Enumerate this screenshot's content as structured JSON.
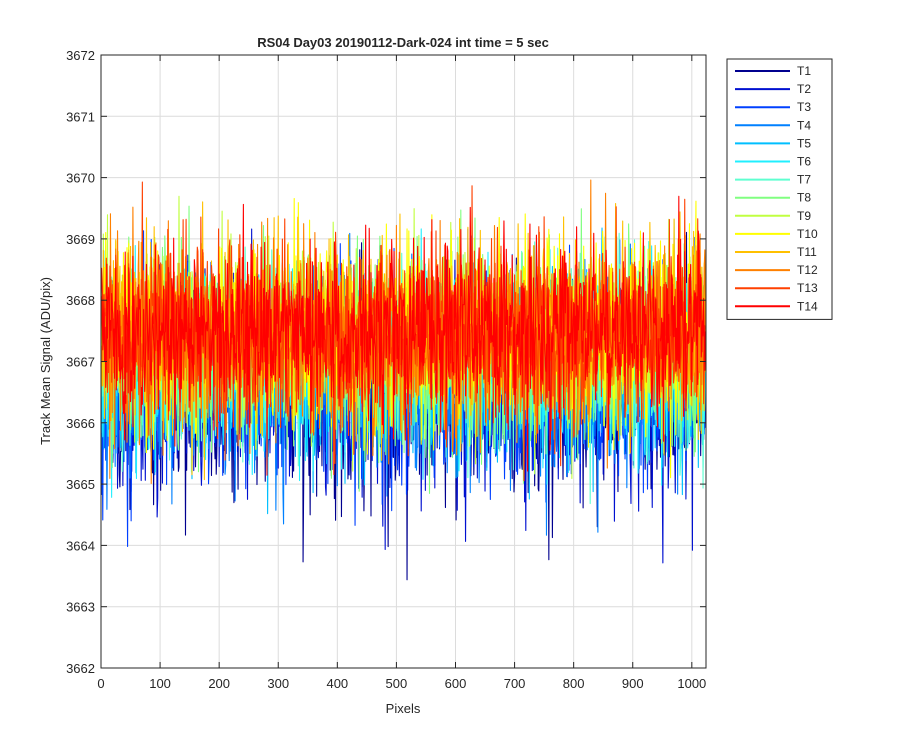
{
  "chart_data": {
    "type": "line",
    "title": "RS04 Day03 20190112-Dark-024 int time = 5 sec",
    "xlabel": "Pixels",
    "ylabel": "Track Mean Signal (ADU/pix)",
    "xlim": [
      0,
      1024
    ],
    "ylim": [
      3662,
      3672
    ],
    "xticks": [
      0,
      100,
      200,
      300,
      400,
      500,
      600,
      700,
      800,
      900,
      1000
    ],
    "yticks": [
      3662,
      3663,
      3664,
      3665,
      3666,
      3667,
      3668,
      3669,
      3670,
      3671,
      3672
    ],
    "grid": true,
    "legend_position": "outside-top-right",
    "n_points": 1024,
    "series": [
      {
        "name": "T1",
        "color": "#00008f",
        "mean": 3666.5,
        "spread": 1.1
      },
      {
        "name": "T2",
        "color": "#0010d0",
        "mean": 3666.6,
        "spread": 1.1
      },
      {
        "name": "T3",
        "color": "#0040ff",
        "mean": 3666.7,
        "spread": 1.05
      },
      {
        "name": "T4",
        "color": "#0080ff",
        "mean": 3666.8,
        "spread": 1.05
      },
      {
        "name": "T5",
        "color": "#00bfff",
        "mean": 3666.9,
        "spread": 1.0
      },
      {
        "name": "T6",
        "color": "#20efff",
        "mean": 3667.0,
        "spread": 1.0
      },
      {
        "name": "T7",
        "color": "#5fffd0",
        "mean": 3667.1,
        "spread": 1.0
      },
      {
        "name": "T8",
        "color": "#80ff80",
        "mean": 3667.2,
        "spread": 1.0
      },
      {
        "name": "T9",
        "color": "#c0ff40",
        "mean": 3667.4,
        "spread": 1.0
      },
      {
        "name": "T10",
        "color": "#ffff00",
        "mean": 3667.5,
        "spread": 1.0
      },
      {
        "name": "T11",
        "color": "#ffc000",
        "mean": 3667.5,
        "spread": 1.0
      },
      {
        "name": "T12",
        "color": "#ff8000",
        "mean": 3667.4,
        "spread": 1.0
      },
      {
        "name": "T13",
        "color": "#ff4000",
        "mean": 3667.5,
        "spread": 0.95
      },
      {
        "name": "T14",
        "color": "#ff0000",
        "mean": 3667.5,
        "spread": 0.95
      }
    ]
  }
}
